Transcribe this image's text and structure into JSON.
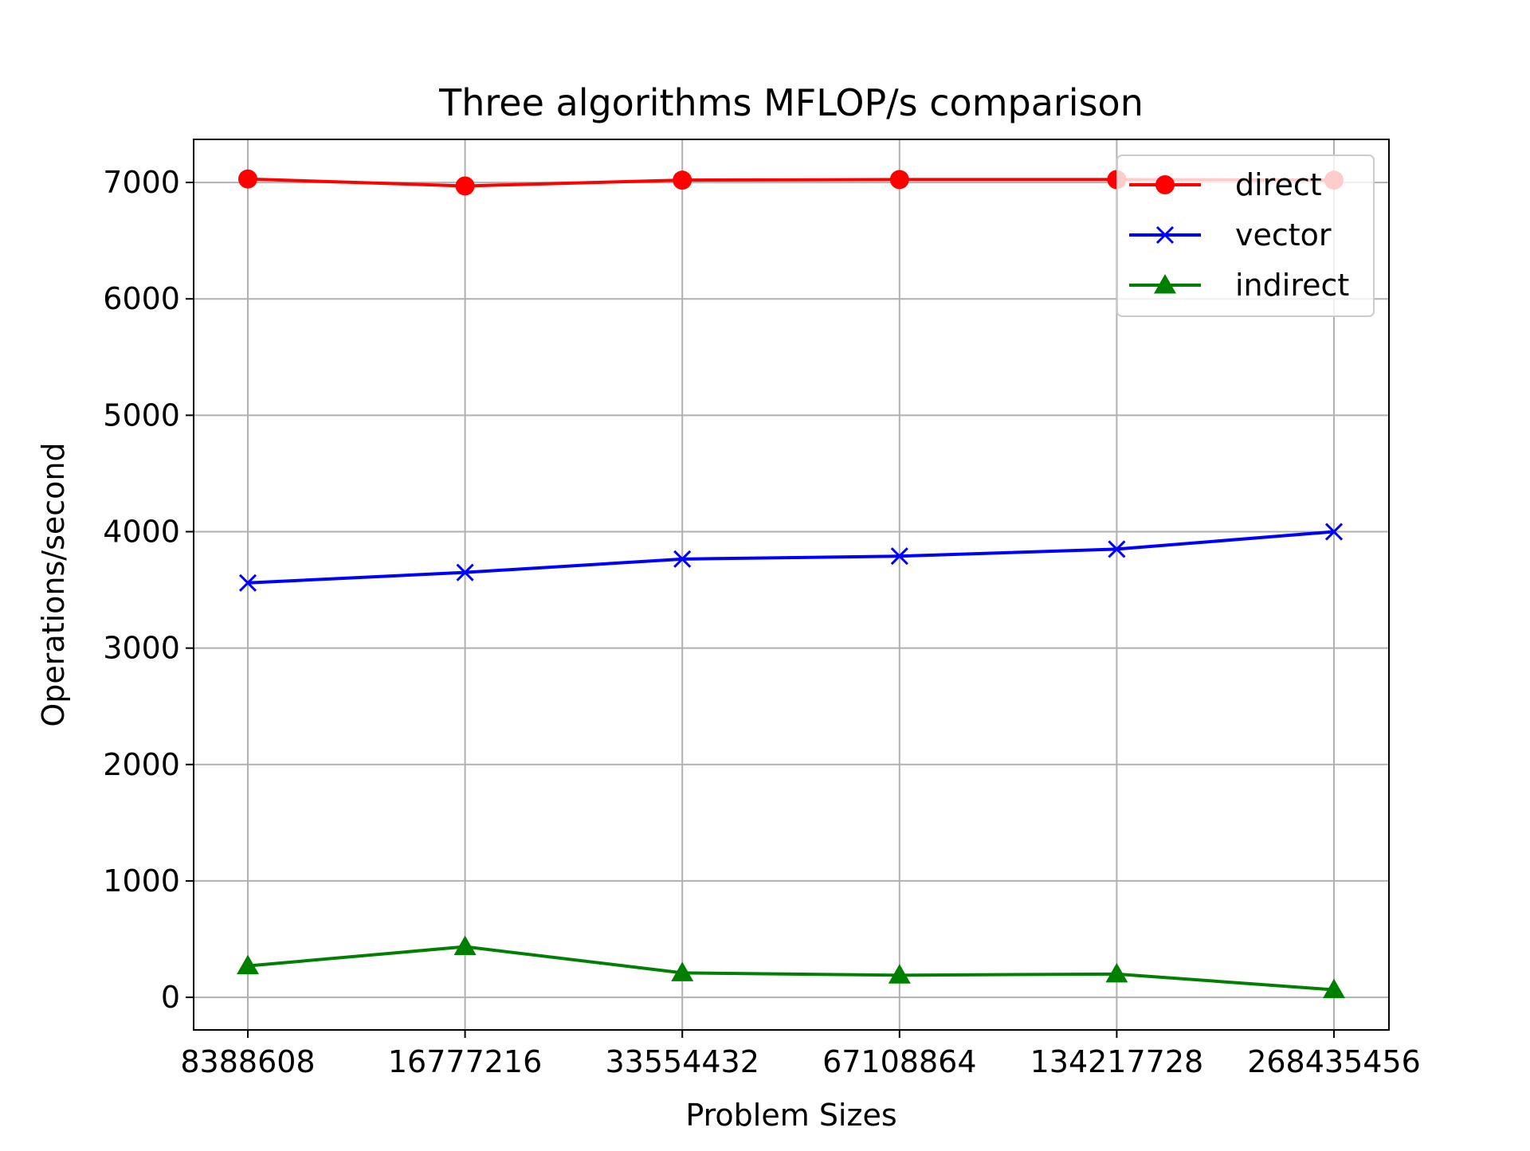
{
  "chart_data": {
    "type": "line",
    "title": "Three algorithms MFLOP/s comparison",
    "xlabel": "Problem Sizes",
    "ylabel": "Operations/second",
    "categories": [
      "8388608",
      "16777216",
      "33554432",
      "67108864",
      "134217728",
      "268435456"
    ],
    "ylim": [
      -280,
      7370
    ],
    "yticks": [
      0,
      1000,
      2000,
      3000,
      4000,
      5000,
      6000,
      7000
    ],
    "grid": true,
    "legend_position": "top-right",
    "series": [
      {
        "name": "direct",
        "color": "#ff0000",
        "marker": "circle",
        "values": [
          7030,
          6970,
          7020,
          7025,
          7025,
          7020
        ]
      },
      {
        "name": "vector",
        "color": "#0000ff",
        "marker": "x",
        "values": [
          3560,
          3650,
          3765,
          3790,
          3850,
          4000
        ]
      },
      {
        "name": "indirect",
        "color": "#008000",
        "marker": "triangle",
        "values": [
          270,
          435,
          210,
          190,
          200,
          65
        ]
      }
    ]
  }
}
